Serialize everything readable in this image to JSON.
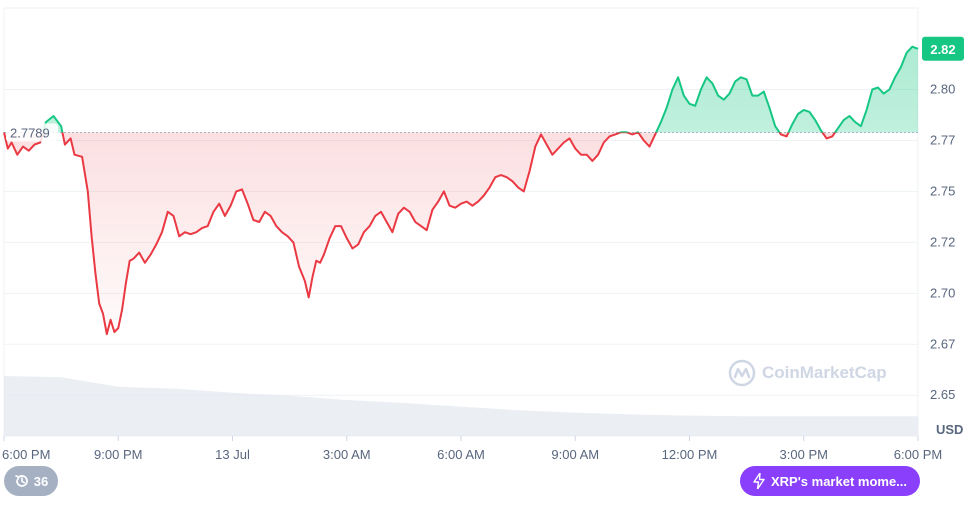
{
  "colors": {
    "up": "#16c784",
    "down": "#ea3943",
    "grid": "#eff2f5",
    "label": "#58667e",
    "accent": "#8a3ffc"
  },
  "currency": "USD",
  "watermark": "CoinMarketCap",
  "history_badge": {
    "icon": "history-icon",
    "count": "36"
  },
  "market_pill": {
    "icon": "lightning-icon",
    "label": "XRP's market mome..."
  },
  "chart_data": {
    "type": "area",
    "reference_value": 2.7789,
    "reference_label": "2.7789",
    "current_value": 2.82,
    "current_label": "2.82",
    "ylim": [
      2.63,
      2.84
    ],
    "yticks": [
      "2.80",
      "2.77",
      "2.75",
      "2.72",
      "2.70",
      "2.67",
      "2.65"
    ],
    "ytick_values": [
      2.8,
      2.775,
      2.75,
      2.725,
      2.7,
      2.675,
      2.65
    ],
    "xtick_labels": [
      "6:00 PM",
      "9:00 PM",
      "13 Jul",
      "3:00 AM",
      "6:00 AM",
      "9:00 AM",
      "12:00 PM",
      "3:00 PM",
      "6:00 PM"
    ],
    "xtick_hours": [
      0,
      3,
      6,
      9,
      12,
      15,
      18,
      21,
      24
    ],
    "xlim_hours": [
      0,
      24
    ],
    "series": [
      {
        "values": [
          [
            0.0,
            2.779
          ],
          [
            0.1,
            2.771
          ],
          [
            0.2,
            2.774
          ],
          [
            0.35,
            2.768
          ],
          [
            0.5,
            2.772
          ],
          [
            0.65,
            2.77
          ],
          [
            0.8,
            2.773
          ],
          [
            0.95,
            2.774
          ],
          [
            1.1,
            2.784
          ],
          [
            1.3,
            2.787
          ],
          [
            1.5,
            2.782
          ],
          [
            1.6,
            2.773
          ],
          [
            1.75,
            2.776
          ],
          [
            1.85,
            2.768
          ],
          [
            2.05,
            2.767
          ],
          [
            2.2,
            2.75
          ],
          [
            2.3,
            2.728
          ],
          [
            2.4,
            2.71
          ],
          [
            2.5,
            2.695
          ],
          [
            2.6,
            2.69
          ],
          [
            2.7,
            2.68
          ],
          [
            2.8,
            2.687
          ],
          [
            2.9,
            2.681
          ],
          [
            3.0,
            2.683
          ],
          [
            3.1,
            2.692
          ],
          [
            3.2,
            2.705
          ],
          [
            3.3,
            2.716
          ],
          [
            3.4,
            2.717
          ],
          [
            3.55,
            2.72
          ],
          [
            3.7,
            2.715
          ],
          [
            3.85,
            2.719
          ],
          [
            4.0,
            2.724
          ],
          [
            4.15,
            2.73
          ],
          [
            4.3,
            2.74
          ],
          [
            4.45,
            2.738
          ],
          [
            4.6,
            2.728
          ],
          [
            4.75,
            2.73
          ],
          [
            4.9,
            2.729
          ],
          [
            5.05,
            2.73
          ],
          [
            5.2,
            2.732
          ],
          [
            5.35,
            2.733
          ],
          [
            5.5,
            2.74
          ],
          [
            5.65,
            2.744
          ],
          [
            5.8,
            2.738
          ],
          [
            5.95,
            2.743
          ],
          [
            6.1,
            2.75
          ],
          [
            6.25,
            2.751
          ],
          [
            6.4,
            2.744
          ],
          [
            6.55,
            2.736
          ],
          [
            6.7,
            2.735
          ],
          [
            6.85,
            2.74
          ],
          [
            7.0,
            2.738
          ],
          [
            7.15,
            2.733
          ],
          [
            7.3,
            2.73
          ],
          [
            7.45,
            2.728
          ],
          [
            7.6,
            2.725
          ],
          [
            7.75,
            2.713
          ],
          [
            7.9,
            2.706
          ],
          [
            8.0,
            2.698
          ],
          [
            8.1,
            2.708
          ],
          [
            8.2,
            2.716
          ],
          [
            8.3,
            2.715
          ],
          [
            8.4,
            2.719
          ],
          [
            8.55,
            2.727
          ],
          [
            8.7,
            2.733
          ],
          [
            8.85,
            2.733
          ],
          [
            9.0,
            2.727
          ],
          [
            9.15,
            2.722
          ],
          [
            9.3,
            2.724
          ],
          [
            9.45,
            2.73
          ],
          [
            9.6,
            2.733
          ],
          [
            9.75,
            2.738
          ],
          [
            9.9,
            2.74
          ],
          [
            10.05,
            2.735
          ],
          [
            10.2,
            2.73
          ],
          [
            10.35,
            2.739
          ],
          [
            10.5,
            2.742
          ],
          [
            10.65,
            2.74
          ],
          [
            10.8,
            2.735
          ],
          [
            10.95,
            2.733
          ],
          [
            11.1,
            2.731
          ],
          [
            11.25,
            2.741
          ],
          [
            11.4,
            2.745
          ],
          [
            11.55,
            2.75
          ],
          [
            11.7,
            2.743
          ],
          [
            11.85,
            2.742
          ],
          [
            12.0,
            2.744
          ],
          [
            12.15,
            2.745
          ],
          [
            12.3,
            2.743
          ],
          [
            12.45,
            2.745
          ],
          [
            12.6,
            2.748
          ],
          [
            12.75,
            2.752
          ],
          [
            12.9,
            2.757
          ],
          [
            13.05,
            2.758
          ],
          [
            13.2,
            2.757
          ],
          [
            13.35,
            2.755
          ],
          [
            13.5,
            2.752
          ],
          [
            13.65,
            2.75
          ],
          [
            13.8,
            2.76
          ],
          [
            13.95,
            2.772
          ],
          [
            14.1,
            2.778
          ],
          [
            14.25,
            2.773
          ],
          [
            14.4,
            2.768
          ],
          [
            14.55,
            2.771
          ],
          [
            14.7,
            2.774
          ],
          [
            14.85,
            2.776
          ],
          [
            15.0,
            2.771
          ],
          [
            15.15,
            2.768
          ],
          [
            15.3,
            2.768
          ],
          [
            15.45,
            2.765
          ],
          [
            15.6,
            2.768
          ],
          [
            15.75,
            2.774
          ],
          [
            15.9,
            2.777
          ],
          [
            16.05,
            2.778
          ],
          [
            16.2,
            2.779
          ],
          [
            16.35,
            2.779
          ],
          [
            16.5,
            2.778
          ],
          [
            16.65,
            2.779
          ],
          [
            16.8,
            2.775
          ],
          [
            16.95,
            2.772
          ],
          [
            17.1,
            2.778
          ],
          [
            17.25,
            2.784
          ],
          [
            17.4,
            2.791
          ],
          [
            17.55,
            2.8
          ],
          [
            17.7,
            2.806
          ],
          [
            17.85,
            2.797
          ],
          [
            18.0,
            2.793
          ],
          [
            18.15,
            2.792
          ],
          [
            18.3,
            2.8
          ],
          [
            18.45,
            2.806
          ],
          [
            18.6,
            2.803
          ],
          [
            18.75,
            2.797
          ],
          [
            18.9,
            2.795
          ],
          [
            19.05,
            2.798
          ],
          [
            19.2,
            2.804
          ],
          [
            19.35,
            2.806
          ],
          [
            19.5,
            2.805
          ],
          [
            19.65,
            2.797
          ],
          [
            19.8,
            2.797
          ],
          [
            19.95,
            2.799
          ],
          [
            20.1,
            2.791
          ],
          [
            20.25,
            2.782
          ],
          [
            20.4,
            2.778
          ],
          [
            20.55,
            2.777
          ],
          [
            20.7,
            2.783
          ],
          [
            20.85,
            2.788
          ],
          [
            21.0,
            2.79
          ],
          [
            21.15,
            2.789
          ],
          [
            21.3,
            2.785
          ],
          [
            21.45,
            2.78
          ],
          [
            21.6,
            2.776
          ],
          [
            21.75,
            2.777
          ],
          [
            21.9,
            2.781
          ],
          [
            22.05,
            2.785
          ],
          [
            22.2,
            2.787
          ],
          [
            22.35,
            2.784
          ],
          [
            22.5,
            2.782
          ],
          [
            22.65,
            2.79
          ],
          [
            22.8,
            2.8
          ],
          [
            22.95,
            2.801
          ],
          [
            23.1,
            2.798
          ],
          [
            23.25,
            2.8
          ],
          [
            23.4,
            2.806
          ],
          [
            23.55,
            2.811
          ],
          [
            23.7,
            2.818
          ],
          [
            23.85,
            2.821
          ],
          [
            24.0,
            2.82
          ]
        ]
      }
    ],
    "volume_relative": [
      [
        0.0,
        1.0
      ],
      [
        1.5,
        0.98
      ],
      [
        3.0,
        0.82
      ],
      [
        4.5,
        0.79
      ],
      [
        6.0,
        0.72
      ],
      [
        7.5,
        0.67
      ],
      [
        9.0,
        0.6
      ],
      [
        10.5,
        0.55
      ],
      [
        12.0,
        0.49
      ],
      [
        13.5,
        0.43
      ],
      [
        15.0,
        0.39
      ],
      [
        16.5,
        0.36
      ],
      [
        18.0,
        0.34
      ],
      [
        19.5,
        0.33
      ],
      [
        21.0,
        0.33
      ],
      [
        22.5,
        0.33
      ],
      [
        24.0,
        0.33
      ]
    ]
  }
}
